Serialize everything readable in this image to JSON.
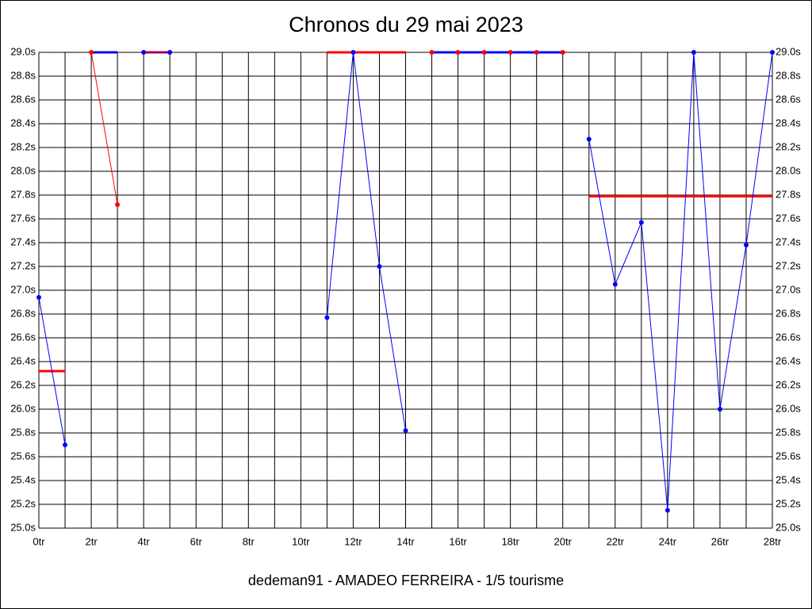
{
  "chart_data": {
    "type": "line",
    "title": "Chronos du 29 mai 2023",
    "xlabel": "dedeman91 - AMADEO FERREIRA - 1/5 tourisme",
    "xlim": [
      0,
      28
    ],
    "ylim": [
      25.0,
      29.0
    ],
    "grid": true,
    "right_axis_labels": true,
    "xticks": [
      {
        "value": 0,
        "label": "0tr"
      },
      {
        "value": 2,
        "label": "2tr"
      },
      {
        "value": 4,
        "label": "4tr"
      },
      {
        "value": 6,
        "label": "6tr"
      },
      {
        "value": 8,
        "label": "8tr"
      },
      {
        "value": 10,
        "label": "10tr"
      },
      {
        "value": 12,
        "label": "12tr"
      },
      {
        "value": 14,
        "label": "14tr"
      },
      {
        "value": 16,
        "label": "16tr"
      },
      {
        "value": 18,
        "label": "18tr"
      },
      {
        "value": 20,
        "label": "20tr"
      },
      {
        "value": 22,
        "label": "22tr"
      },
      {
        "value": 24,
        "label": "24tr"
      },
      {
        "value": 26,
        "label": "26tr"
      },
      {
        "value": 28,
        "label": "28tr"
      }
    ],
    "xminorticks": [
      1,
      3,
      5,
      7,
      9,
      11,
      13,
      15,
      17,
      19,
      21,
      23,
      25,
      27
    ],
    "yticks": [
      {
        "value": 25.0,
        "label": "25.0s"
      },
      {
        "value": 25.2,
        "label": "25.2s"
      },
      {
        "value": 25.4,
        "label": "25.4s"
      },
      {
        "value": 25.6,
        "label": "25.6s"
      },
      {
        "value": 25.8,
        "label": "25.8s"
      },
      {
        "value": 26.0,
        "label": "26.0s"
      },
      {
        "value": 26.2,
        "label": "26.2s"
      },
      {
        "value": 26.4,
        "label": "26.4s"
      },
      {
        "value": 26.6,
        "label": "26.6s"
      },
      {
        "value": 26.8,
        "label": "26.8s"
      },
      {
        "value": 27.0,
        "label": "27.0s"
      },
      {
        "value": 27.2,
        "label": "27.2s"
      },
      {
        "value": 27.4,
        "label": "27.4s"
      },
      {
        "value": 27.6,
        "label": "27.6s"
      },
      {
        "value": 27.8,
        "label": "27.8s"
      },
      {
        "value": 28.0,
        "label": "28.0s"
      },
      {
        "value": 28.2,
        "label": "28.2s"
      },
      {
        "value": 28.4,
        "label": "28.4s"
      },
      {
        "value": 28.6,
        "label": "28.6s"
      },
      {
        "value": 28.8,
        "label": "28.8s"
      },
      {
        "value": 29.0,
        "label": "29.0s"
      }
    ],
    "series": [
      {
        "color": "#ff0000",
        "line_width": 3,
        "markers": false,
        "x": [
          0,
          1
        ],
        "values": [
          26.32,
          26.32
        ]
      },
      {
        "color": "#0000ff",
        "line_width": 3,
        "markers": false,
        "x": [
          2,
          3
        ],
        "values": [
          29.0,
          29.0
        ]
      },
      {
        "color": "#ff0000",
        "line_width": 3,
        "markers": false,
        "x": [
          4,
          5
        ],
        "values": [
          29.0,
          29.0
        ]
      },
      {
        "color": "#ff0000",
        "line_width": 3,
        "markers": false,
        "x": [
          11,
          14
        ],
        "values": [
          29.0,
          29.0
        ]
      },
      {
        "color": "#ff0000",
        "line_width": 3,
        "markers": false,
        "x": [
          21,
          28
        ],
        "values": [
          27.79,
          27.79
        ]
      },
      {
        "color": "#0000ff",
        "line_width": 1,
        "markers": true,
        "marker_color": "#0000ff",
        "x": [
          0,
          1
        ],
        "values": [
          26.94,
          25.7
        ]
      },
      {
        "color": "#ff0000",
        "line_width": 1,
        "markers": true,
        "marker_color": "#ff0000",
        "x": [
          2,
          3
        ],
        "values": [
          29.0,
          27.72
        ]
      },
      {
        "color": "#0000ff",
        "line_width": 1,
        "markers": true,
        "marker_color": "#0000ff",
        "x": [
          4,
          5
        ],
        "values": [
          29.0,
          29.0
        ]
      },
      {
        "color": "#0000ff",
        "line_width": 1,
        "markers": true,
        "marker_color": "#0000ff",
        "x": [
          11,
          12,
          13,
          14
        ],
        "values": [
          26.77,
          29.0,
          27.2,
          25.82
        ]
      },
      {
        "color": "#0000ff",
        "line_width": 3,
        "markers": true,
        "marker_color": "#ff0000",
        "x": [
          15,
          16,
          17,
          18,
          19,
          20
        ],
        "values": [
          29.0,
          29.0,
          29.0,
          29.0,
          29.0,
          29.0
        ]
      },
      {
        "color": "#0000ff",
        "line_width": 1,
        "markers": true,
        "marker_color": "#0000ff",
        "x": [
          21,
          22,
          23,
          24,
          25,
          26,
          27,
          28
        ],
        "values": [
          28.27,
          27.05,
          27.57,
          25.15,
          29.0,
          26.0,
          27.38,
          29.0
        ]
      }
    ]
  }
}
